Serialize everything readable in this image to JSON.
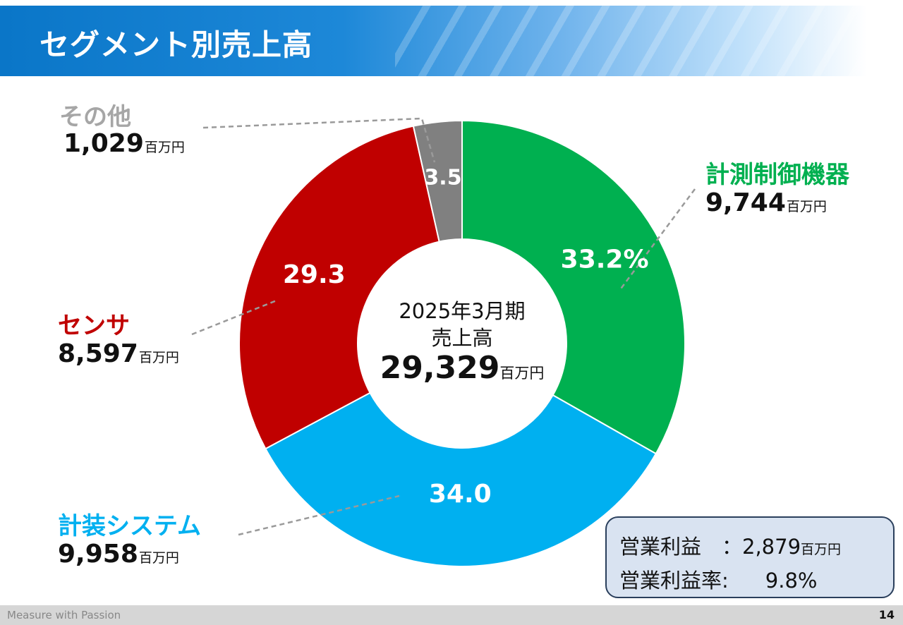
{
  "header": {
    "title": "セグメント別売上高"
  },
  "colors": {
    "measurement_control": "#00b050",
    "instrumentation_systems": "#00b0f0",
    "sensors": "#c00000",
    "other": "#808080",
    "other_label": "#a6a6a6"
  },
  "chart_data": {
    "type": "donut",
    "unit": "百万円",
    "segments": [
      {
        "name": "計測制御機器",
        "amount": "9,744",
        "value": 9744,
        "percent": 33.2,
        "percent_label": "33.2%"
      },
      {
        "name": "計装システム",
        "amount": "9,958",
        "value": 9958,
        "percent": 34.0,
        "percent_label": "34.0"
      },
      {
        "name": "センサ",
        "amount": "8,597",
        "value": 8597,
        "percent": 29.3,
        "percent_label": "29.3"
      },
      {
        "name": "その他",
        "amount": "1,029",
        "value": 1029,
        "percent": 3.5,
        "percent_label": "3.5"
      }
    ],
    "center": {
      "period": "2025年3月期",
      "label": "売上高",
      "total": "29,329",
      "unit": "百万円"
    }
  },
  "profit": {
    "operating_profit_label": "営業利益　：",
    "operating_profit_value": "2,879",
    "operating_profit_unit": "百万円",
    "margin_label": "営業利益率:",
    "margin_value": "9.8%"
  },
  "footer": {
    "tagline": "Measure with Passion",
    "page": "14"
  }
}
